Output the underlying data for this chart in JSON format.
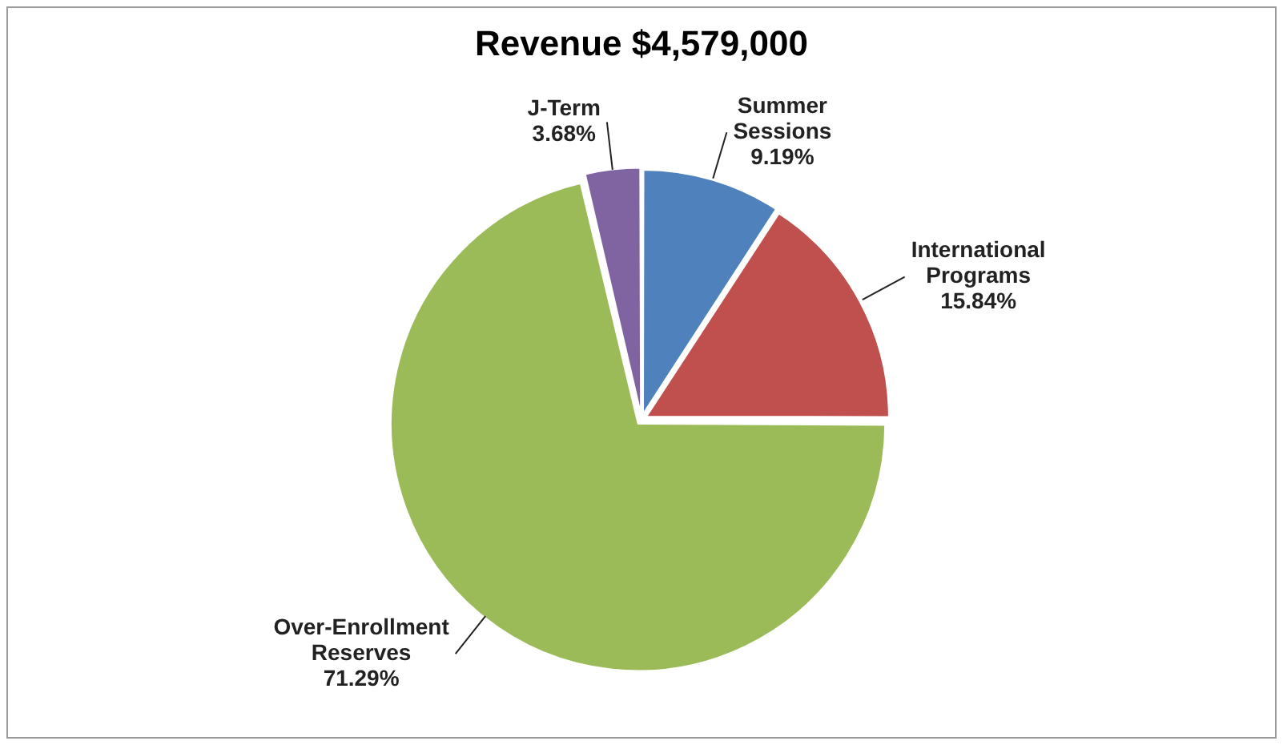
{
  "chart_data": {
    "type": "pie",
    "title": "Revenue $4,579,000",
    "categories": [
      "Summer Sessions",
      "International Programs",
      "Over-Enrollment Reserves",
      "J-Term"
    ],
    "values": [
      9.19,
      15.84,
      71.29,
      3.68
    ],
    "colors": [
      "#4f81bd",
      "#c0504d",
      "#9bbb59",
      "#8064a2"
    ],
    "value_labels": [
      "9.19%",
      "15.84%",
      "71.29%",
      "3.68%"
    ]
  }
}
